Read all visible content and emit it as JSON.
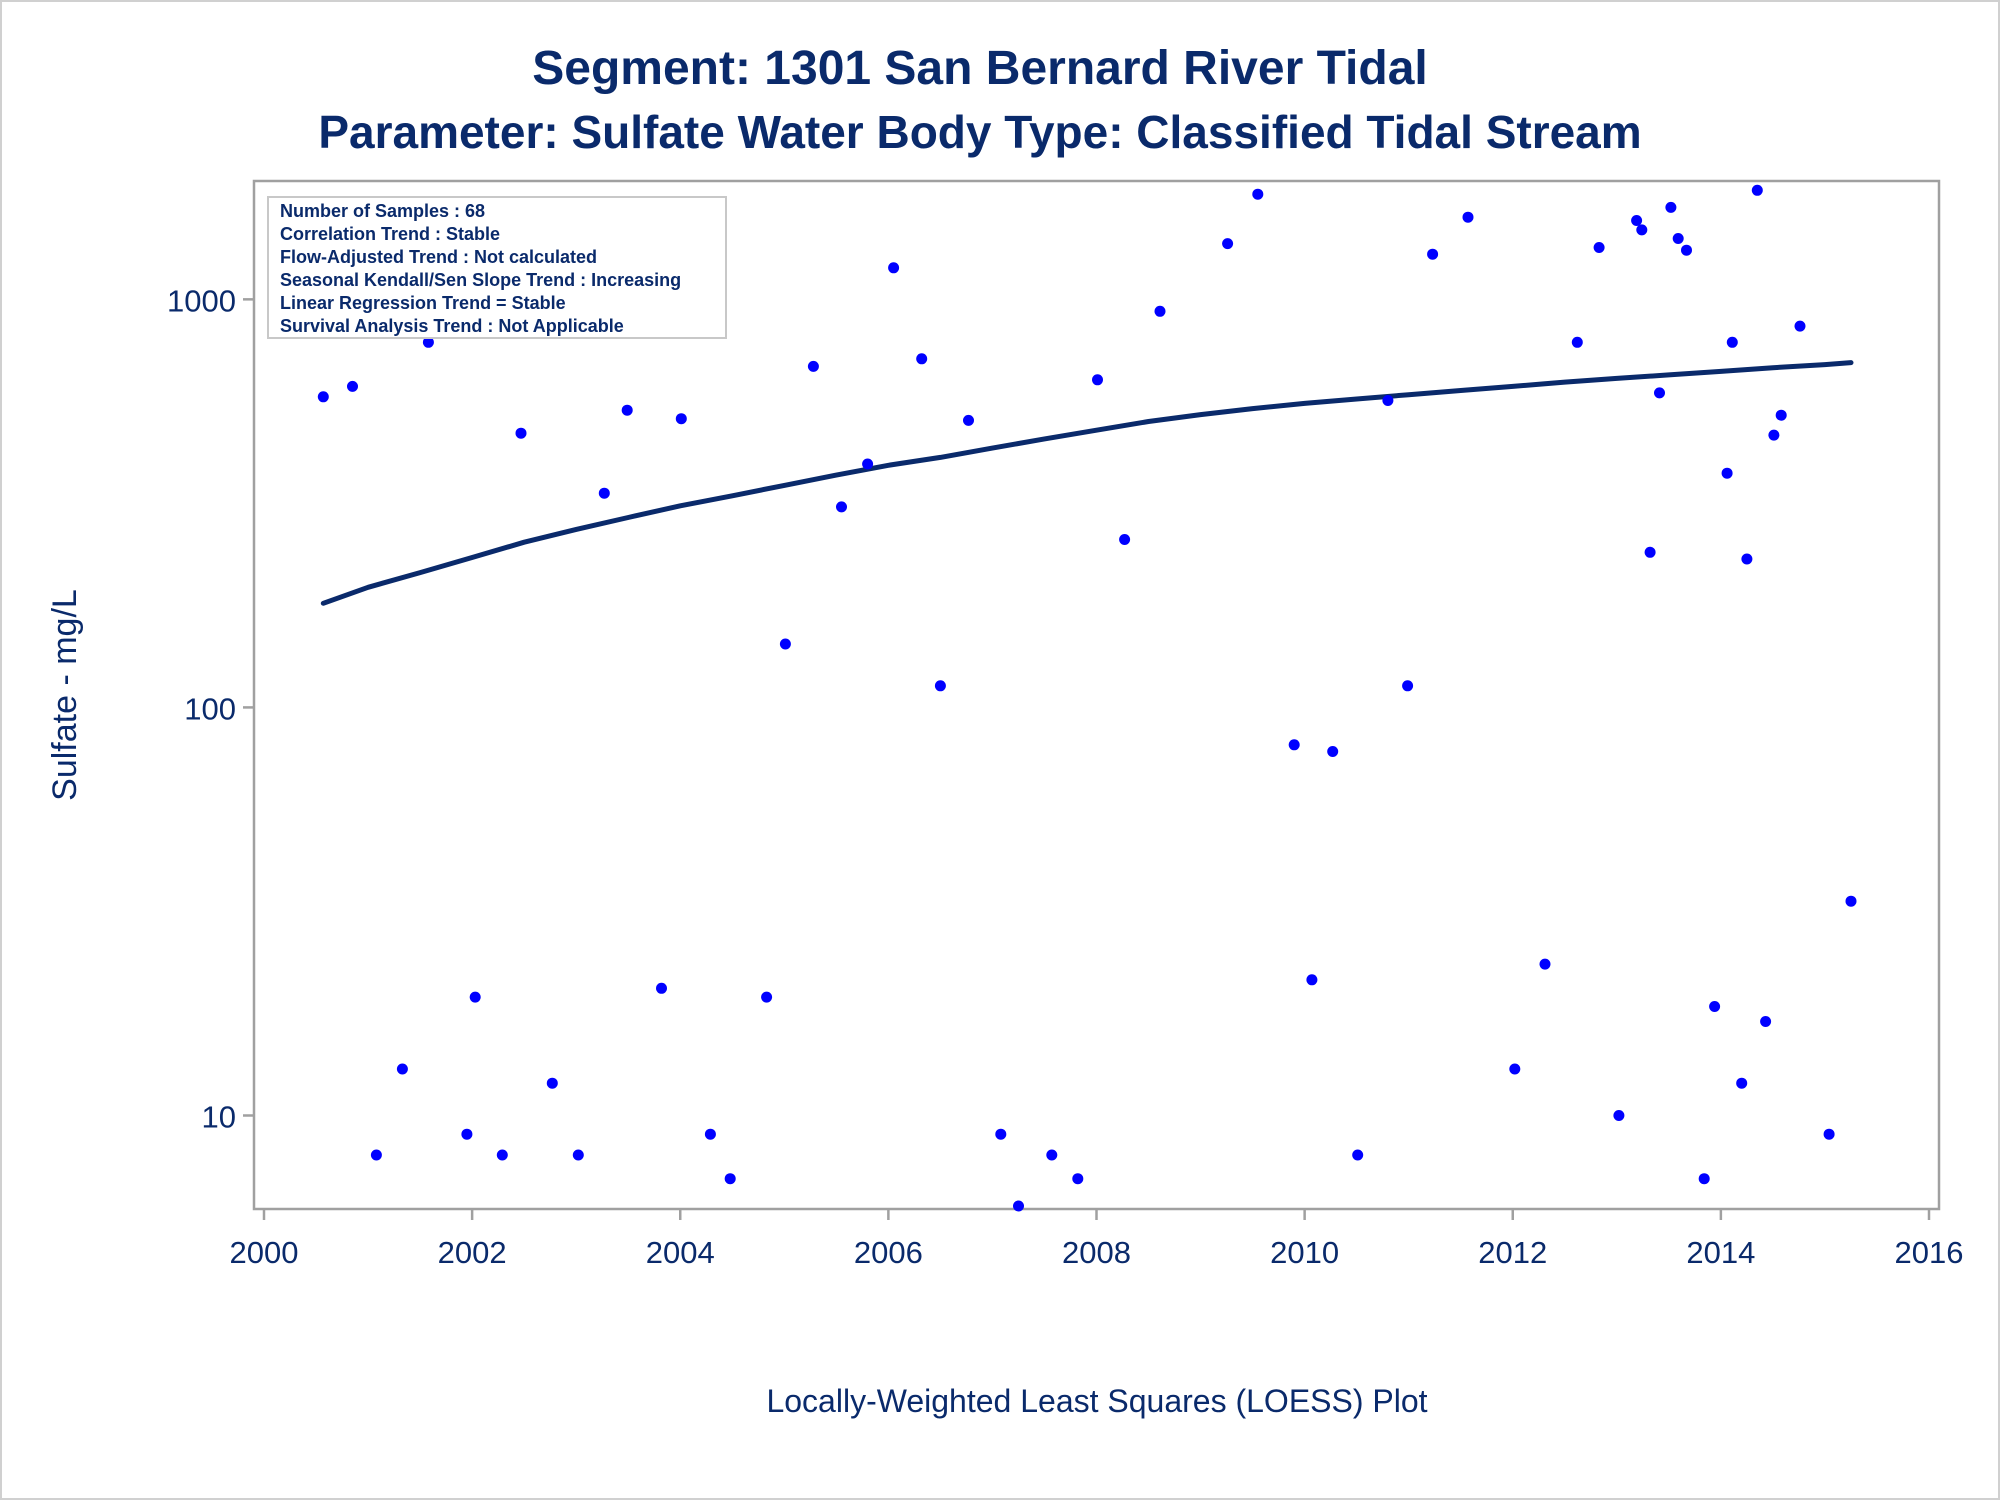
{
  "chart_data": {
    "type": "scatter",
    "title": "Segment: 1301  San Bernard River Tidal",
    "subtitle": "Parameter: Sulfate   Water Body Type: Classified Tidal Stream",
    "ylabel": "Sulfate - mg/L",
    "xlabel": "",
    "footnote": "Locally-Weighted Least Squares (LOESS) Plot",
    "yscale": "log",
    "xlim": [
      2000,
      2016
    ],
    "ylim": [
      5.9,
      1950
    ],
    "x_ticks": [
      2000,
      2002,
      2004,
      2006,
      2008,
      2010,
      2012,
      2014,
      2016
    ],
    "x_tick_labels": [
      "2000",
      "2002",
      "2004",
      "2006",
      "2008",
      "2010",
      "2012",
      "2014",
      "2016"
    ],
    "y_ticks": [
      10,
      100,
      1000
    ],
    "y_tick_labels": [
      "10",
      "100",
      "1000"
    ],
    "grid": false,
    "legend_placement": "top-left",
    "stats_box": [
      "Number of Samples : 68",
      "Correlation Trend : Stable",
      "Flow-Adjusted Trend : Not calculated",
      "Seasonal Kendall/Sen Slope Trend : Increasing",
      "Linear Regression Trend = Stable",
      "Survival Analysis Trend : Not Applicable"
    ],
    "series": [
      {
        "type": "scatter",
        "points": [
          [
            2000.57,
            577
          ],
          [
            2000.85,
            612
          ],
          [
            2001.08,
            8
          ],
          [
            2001.33,
            13
          ],
          [
            2001.58,
            785
          ],
          [
            2001.95,
            9
          ],
          [
            2002.03,
            19.5
          ],
          [
            2002.29,
            8
          ],
          [
            2002.47,
            470
          ],
          [
            2002.77,
            12
          ],
          [
            2003.02,
            8
          ],
          [
            2003.27,
            335
          ],
          [
            2003.49,
            535
          ],
          [
            2003.82,
            20.5
          ],
          [
            2004.01,
            510
          ],
          [
            2004.29,
            9
          ],
          [
            2004.48,
            7
          ],
          [
            2004.83,
            19.5
          ],
          [
            2005.01,
            143
          ],
          [
            2005.28,
            685
          ],
          [
            2005.55,
            310
          ],
          [
            2005.8,
            395
          ],
          [
            2006.05,
            1195
          ],
          [
            2006.32,
            715
          ],
          [
            2006.5,
            113
          ],
          [
            2006.77,
            505
          ],
          [
            2007.08,
            9
          ],
          [
            2007.25,
            6
          ],
          [
            2007.57,
            8
          ],
          [
            2007.82,
            7
          ],
          [
            2008.01,
            635
          ],
          [
            2008.27,
            258
          ],
          [
            2008.61,
            935
          ],
          [
            2009.26,
            1370
          ],
          [
            2009.55,
            1810
          ],
          [
            2009.9,
            81
          ],
          [
            2010.07,
            21.5
          ],
          [
            2010.27,
            78
          ],
          [
            2010.51,
            8
          ],
          [
            2010.8,
            565
          ],
          [
            2010.99,
            113
          ],
          [
            2011.23,
            1290
          ],
          [
            2011.57,
            1590
          ],
          [
            2012.02,
            13
          ],
          [
            2012.31,
            23.5
          ],
          [
            2012.62,
            785
          ],
          [
            2012.83,
            1340
          ],
          [
            2013.02,
            10
          ],
          [
            2013.19,
            1560
          ],
          [
            2013.24,
            1480
          ],
          [
            2013.32,
            240
          ],
          [
            2013.41,
            590
          ],
          [
            2013.52,
            1680
          ],
          [
            2013.59,
            1410
          ],
          [
            2013.67,
            1320
          ],
          [
            2013.84,
            7
          ],
          [
            2013.94,
            18.5
          ],
          [
            2014.06,
            375
          ],
          [
            2014.11,
            785
          ],
          [
            2014.2,
            12
          ],
          [
            2014.25,
            231
          ],
          [
            2014.35,
            1850
          ],
          [
            2014.43,
            17
          ],
          [
            2014.51,
            465
          ],
          [
            2014.58,
            520
          ],
          [
            2014.76,
            860
          ],
          [
            2015.04,
            9
          ],
          [
            2015.25,
            33.5
          ]
        ]
      },
      {
        "type": "line",
        "name": "",
        "points": [
          [
            2000.57,
            180
          ],
          [
            2001.0,
            197
          ],
          [
            2001.5,
            214
          ],
          [
            2002.0,
            233
          ],
          [
            2002.5,
            254
          ],
          [
            2003.0,
            273
          ],
          [
            2003.5,
            292
          ],
          [
            2004.0,
            312
          ],
          [
            2004.5,
            330
          ],
          [
            2005.0,
            350
          ],
          [
            2005.5,
            371
          ],
          [
            2006.0,
            392
          ],
          [
            2006.5,
            410
          ],
          [
            2007.0,
            432
          ],
          [
            2007.5,
            455
          ],
          [
            2008.0,
            478
          ],
          [
            2008.5,
            502
          ],
          [
            2009.0,
            522
          ],
          [
            2009.5,
            540
          ],
          [
            2010.0,
            556
          ],
          [
            2010.5,
            570
          ],
          [
            2011.0,
            584
          ],
          [
            2011.5,
            598
          ],
          [
            2012.0,
            612
          ],
          [
            2012.5,
            627
          ],
          [
            2013.0,
            640
          ],
          [
            2013.5,
            653
          ],
          [
            2014.0,
            666
          ],
          [
            2014.5,
            680
          ],
          [
            2015.0,
            692
          ],
          [
            2015.25,
            700
          ]
        ]
      }
    ],
    "colors": {
      "points": "#0000ff",
      "loess_line": "#0a2a6b",
      "text": "#0a2a6b",
      "frame": "#a0a0a0"
    }
  }
}
